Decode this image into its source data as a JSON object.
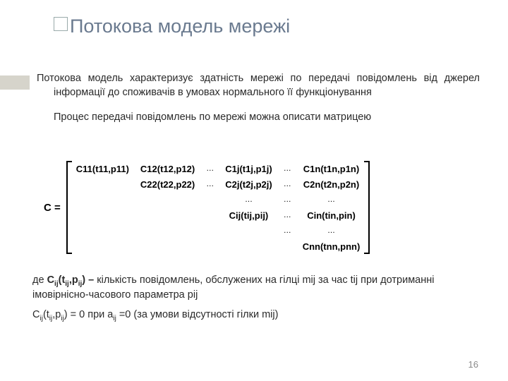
{
  "title": "Потокова модель мережі",
  "para1": "Потокова модель характеризує здатність мережі по передачі повідомлень від джерел інформації до споживачів в умовах нормального її функціонування",
  "para2": "Процес передачі повідомлень по мережі можна описати матрицею",
  "matrix": {
    "label": "C =",
    "rows": [
      [
        "C11(t11,p11)",
        "C12(t12,p12)",
        "…",
        "C1j(t1j,p1j)",
        "…",
        "C1n(t1n,p1n)"
      ],
      [
        "",
        "C22(t22,p22)",
        "…",
        "C2j(t2j,p2j)",
        "…",
        "C2n(t2n,p2n)"
      ],
      [
        "",
        "",
        "",
        "…",
        "…",
        "…"
      ],
      [
        "",
        "",
        "",
        "Cij(tij,pij)",
        "…",
        "Cin(tin,pin)"
      ],
      [
        "",
        "",
        "",
        "",
        "…",
        "…"
      ],
      [
        "",
        "",
        "",
        "",
        "",
        "Cnn(tnn,pnn)"
      ]
    ]
  },
  "lower1_pre": "де ",
  "lower1_bold": "Cij(tij,pij) – ",
  "lower1_post": "кількість повідомлень, обслужених на гілці mij за час tij при дотриманні імовірнісно-часового параметра pij",
  "lower2": "Cij(tij,pij) = 0 при aij =0 (за умови відсутності гілки mij)",
  "page": "16",
  "colors": {
    "title": "#6a7a8f",
    "sidebar": "#d6d4cb",
    "text": "#2a2a2a",
    "pagenum": "#8a8a8a"
  }
}
